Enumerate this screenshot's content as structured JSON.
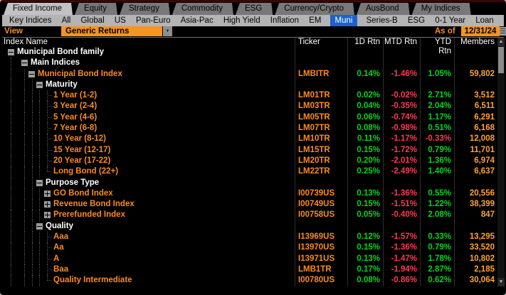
{
  "colors": {
    "accent_orange": "#fb8b1e",
    "field_orange": "#f7941d",
    "positive_green": "#00d618",
    "negative_red": "#ff3950",
    "muni_blue": "#1b63c9",
    "tab_selected": "#c2c2c2",
    "tab_unselected": "#787878",
    "members_orange": "#ffa235"
  },
  "icons": {
    "dropdown_arrow": "▼",
    "scroll_up": "▲",
    "scroll_down": "▼",
    "collapse": "-",
    "expand": "+",
    "calendar": "grid-box"
  },
  "tabs": [
    {
      "label": "Fixed Income",
      "selected": true
    },
    {
      "label": "Equity",
      "selected": false
    },
    {
      "label": "Strategy",
      "selected": false
    },
    {
      "label": "Commodity",
      "selected": false
    },
    {
      "label": "ESG",
      "selected": false
    },
    {
      "label": "Currency/Crypto",
      "selected": false
    },
    {
      "label": "AusBond",
      "selected": false
    },
    {
      "label": "My Indices",
      "selected": false
    }
  ],
  "subtabs": [
    {
      "label": "Key Indices",
      "selected": false
    },
    {
      "label": "All",
      "selected": false
    },
    {
      "label": "Global",
      "selected": false
    },
    {
      "label": "US",
      "selected": false
    },
    {
      "label": "Pan-Euro",
      "selected": false
    },
    {
      "label": "Asia-Pac",
      "selected": false
    },
    {
      "label": "High Yield",
      "selected": false
    },
    {
      "label": "Inflation",
      "selected": false
    },
    {
      "label": "EM",
      "selected": false
    },
    {
      "label": "Muni",
      "selected": true
    },
    {
      "label": "Series-B",
      "selected": false
    },
    {
      "label": "ESG",
      "selected": false
    },
    {
      "label": "0-1 Year",
      "selected": false
    },
    {
      "label": "Loan",
      "selected": false
    }
  ],
  "toolbar": {
    "view_label": "View",
    "view_value": "Generic Returns",
    "as_of_label": "As of",
    "as_of_date": "12/31/24"
  },
  "table": {
    "columns": [
      "Index Name",
      "Ticker",
      "1D Rtn",
      "MTD Rtn",
      "YTD Rtn",
      "Members"
    ],
    "rows": [
      {
        "name": "Municipal Bond family",
        "level": 0,
        "node": "minus",
        "style": "group",
        "ticker": "",
        "d1": "",
        "mtd": "",
        "ytd": "",
        "members": ""
      },
      {
        "name": "Main Indices",
        "level": 1,
        "node": "minus",
        "style": "group",
        "ticker": "",
        "d1": "",
        "mtd": "",
        "ytd": "",
        "members": ""
      },
      {
        "name": "Municipal Bond Index",
        "level": 2,
        "node": "minus",
        "style": "index",
        "ticker": "LMBITR",
        "d1": "0.14%",
        "mtd": "-1.46%",
        "ytd": "1.05%",
        "members": "59,802"
      },
      {
        "name": "Maturity",
        "level": 3,
        "node": "minus",
        "style": "group",
        "ticker": "",
        "d1": "",
        "mtd": "",
        "ytd": "",
        "members": ""
      },
      {
        "name": "1 Year (1-2)",
        "level": 4,
        "node": "leaf",
        "style": "index",
        "ticker": "LM01TR",
        "d1": "0.02%",
        "mtd": "-0.02%",
        "ytd": "2.71%",
        "members": "3,512"
      },
      {
        "name": "3 Year (2-4)",
        "level": 4,
        "node": "leaf",
        "style": "index",
        "ticker": "LM03TR",
        "d1": "0.04%",
        "mtd": "-0.35%",
        "ytd": "2.04%",
        "members": "6,511"
      },
      {
        "name": "5 Year (4-6)",
        "level": 4,
        "node": "leaf",
        "style": "index",
        "ticker": "LM05TR",
        "d1": "0.06%",
        "mtd": "-0.74%",
        "ytd": "1.17%",
        "members": "6,291"
      },
      {
        "name": "7 Year (6-8)",
        "level": 4,
        "node": "leaf",
        "style": "index",
        "ticker": "LM07TR",
        "d1": "0.08%",
        "mtd": "-0.98%",
        "ytd": "0.51%",
        "members": "6,168"
      },
      {
        "name": "10 Year (8-12)",
        "level": 4,
        "node": "leaf",
        "style": "index",
        "ticker": "LM10TR",
        "d1": "0.11%",
        "mtd": "-1.17%",
        "ytd": "-0.33%",
        "members": "12,008"
      },
      {
        "name": "15 Year (12-17)",
        "level": 4,
        "node": "leaf",
        "style": "index",
        "ticker": "LM15TR",
        "d1": "0.15%",
        "mtd": "-1.72%",
        "ytd": "0.79%",
        "members": "11,701"
      },
      {
        "name": "20 Year (17-22)",
        "level": 4,
        "node": "leaf",
        "style": "index",
        "ticker": "LM20TR",
        "d1": "0.20%",
        "mtd": "-2.01%",
        "ytd": "1.36%",
        "members": "6,974"
      },
      {
        "name": "Long Bond (22+)",
        "level": 4,
        "node": "leaf-last",
        "style": "index",
        "ticker": "LM22TR",
        "d1": "0.25%",
        "mtd": "-2.49%",
        "ytd": "1.40%",
        "members": "6,637"
      },
      {
        "name": "Purpose Type",
        "level": 3,
        "node": "minus",
        "style": "group",
        "ticker": "",
        "d1": "",
        "mtd": "",
        "ytd": "",
        "members": ""
      },
      {
        "name": "GO Bond Index",
        "level": 4,
        "node": "plus",
        "style": "index",
        "ticker": "I00739US",
        "d1": "0.13%",
        "mtd": "-1.36%",
        "ytd": "0.55%",
        "members": "20,556"
      },
      {
        "name": "Revenue Bond Index",
        "level": 4,
        "node": "plus",
        "style": "index",
        "ticker": "I00749US",
        "d1": "0.15%",
        "mtd": "-1.51%",
        "ytd": "1.22%",
        "members": "38,399"
      },
      {
        "name": "Prerefunded Index",
        "level": 4,
        "node": "plus",
        "style": "index",
        "ticker": "I00758US",
        "d1": "0.05%",
        "mtd": "-0.40%",
        "ytd": "2.08%",
        "members": "847"
      },
      {
        "name": "Quality",
        "level": 3,
        "node": "minus",
        "style": "group",
        "ticker": "",
        "d1": "",
        "mtd": "",
        "ytd": "",
        "members": ""
      },
      {
        "name": "Aaa",
        "level": 4,
        "node": "leaf",
        "style": "index",
        "ticker": "I13969US",
        "d1": "0.12%",
        "mtd": "-1.57%",
        "ytd": "0.33%",
        "members": "13,295"
      },
      {
        "name": "Aa",
        "level": 4,
        "node": "leaf",
        "style": "index",
        "ticker": "I13970US",
        "d1": "0.15%",
        "mtd": "-1.36%",
        "ytd": "0.79%",
        "members": "33,520"
      },
      {
        "name": "A",
        "level": 4,
        "node": "leaf",
        "style": "index",
        "ticker": "I13971US",
        "d1": "0.13%",
        "mtd": "-1.47%",
        "ytd": "1.78%",
        "members": "10,802"
      },
      {
        "name": "Baa",
        "level": 4,
        "node": "leaf",
        "style": "index",
        "ticker": "LMB1TR",
        "d1": "0.17%",
        "mtd": "-1.94%",
        "ytd": "2.87%",
        "members": "2,185"
      },
      {
        "name": "Quality Intermediate",
        "level": 4,
        "node": "leaf-last",
        "style": "index",
        "ticker": "I00780US",
        "d1": "0.08%",
        "mtd": "-0.86%",
        "ytd": "0.62%",
        "members": "30,064"
      }
    ]
  }
}
